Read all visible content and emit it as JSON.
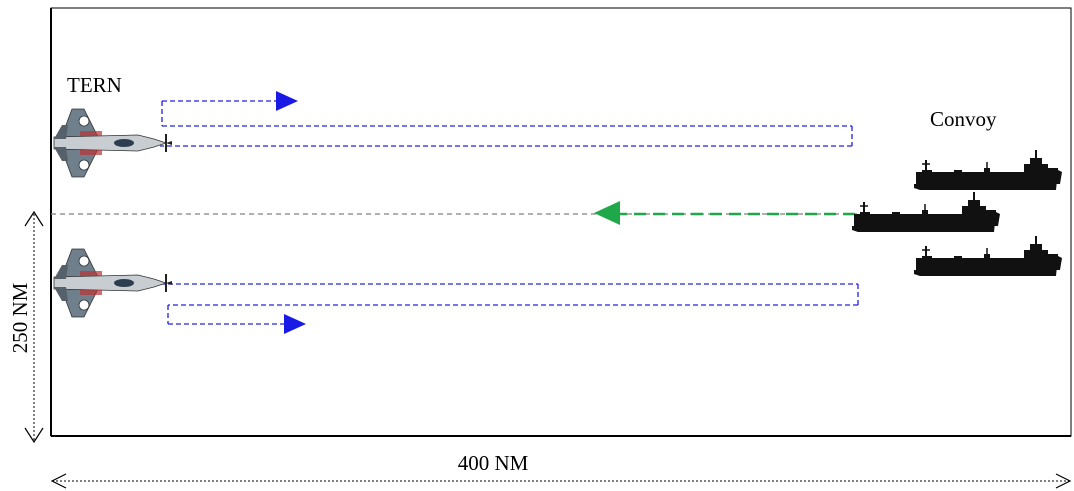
{
  "labels": {
    "aircraft": "TERN",
    "convoy": "Convoy",
    "width": "400 NM",
    "height": "250 NM"
  },
  "icons": {
    "aircraft": "fighter-jet-icon",
    "ship": "cargo-ship-silhouette-icon",
    "patrol_arrow": "blue-arrowhead",
    "convoy_arrow": "green-arrowhead"
  },
  "colors": {
    "patrol_path": "#2020e0",
    "convoy_heading": "#1fa84a",
    "centerline": "#808080",
    "ship": "#111111",
    "border": "#000000"
  }
}
